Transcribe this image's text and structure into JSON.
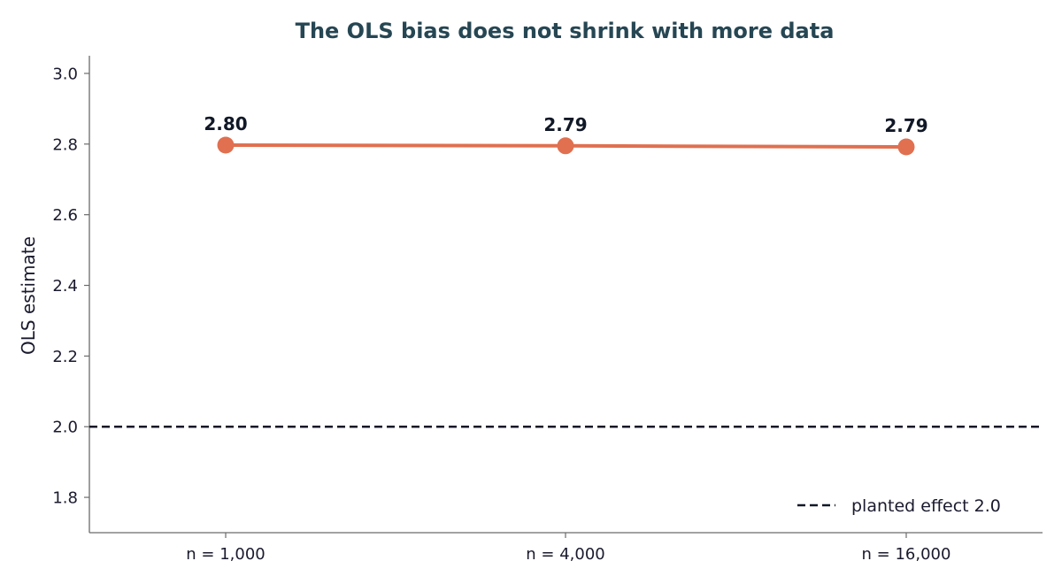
{
  "chart_data": {
    "type": "line",
    "title": "The OLS bias does not shrink with more data",
    "xlabel": "",
    "ylabel": "OLS estimate",
    "categories": [
      "n = 1,000",
      "n = 4,000",
      "n = 16,000"
    ],
    "series": [
      {
        "values": [
          2.797,
          2.795,
          2.792
        ],
        "labels": [
          "2.80",
          "2.79",
          "2.79"
        ],
        "color": "#e07050"
      }
    ],
    "reference_line": {
      "name": "planted effect 2.0",
      "y": 2.0,
      "style": "dashed",
      "color": "#111827"
    },
    "ylim": [
      1.7,
      3.05
    ],
    "yticks": [
      1.8,
      2.0,
      2.2,
      2.4,
      2.6,
      2.8,
      3.0
    ],
    "ytick_labels": [
      "1.8",
      "2.0",
      "2.2",
      "2.4",
      "2.6",
      "2.8",
      "3.0"
    ],
    "grid": false,
    "legend": {
      "position": "bottom-right",
      "entries": [
        "planted effect 2.0"
      ]
    }
  }
}
